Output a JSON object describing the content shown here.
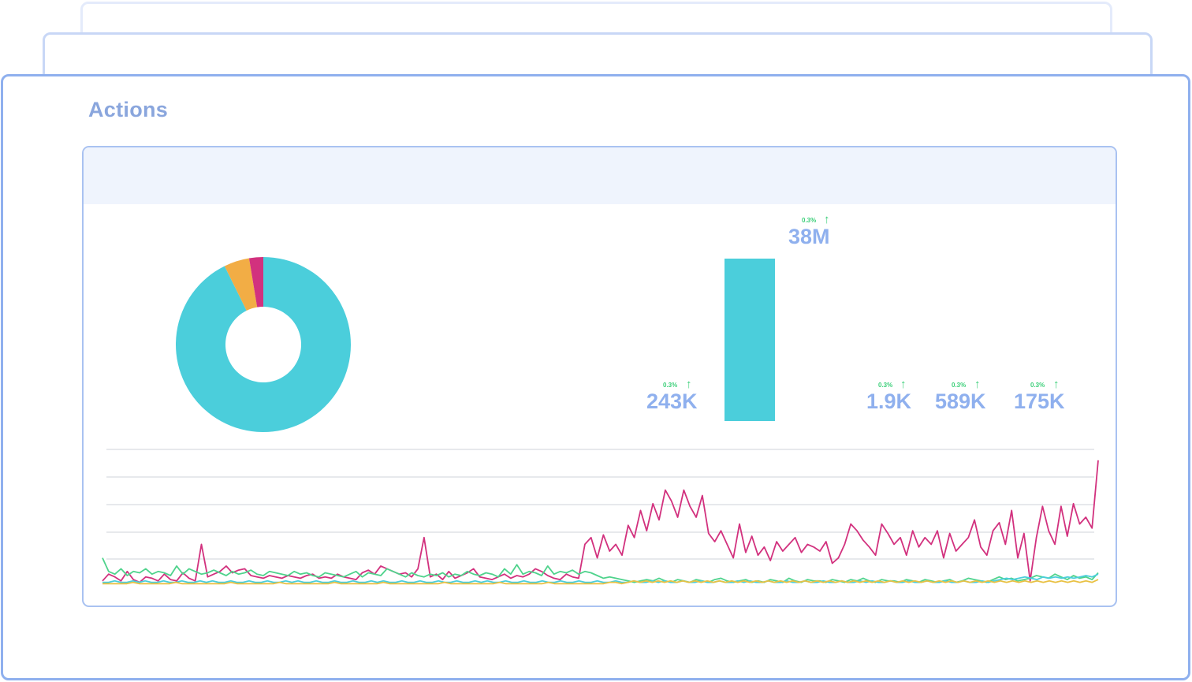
{
  "section": {
    "title": "Actions"
  },
  "metrics": [
    {
      "value": "243K",
      "delta": "0.3%",
      "trend": "up"
    },
    {
      "value": "38M",
      "delta": "0.3%",
      "trend": "up"
    },
    {
      "value": "1.9K",
      "delta": "0.3%",
      "trend": "up"
    },
    {
      "value": "589K",
      "delta": "0.3%",
      "trend": "up"
    },
    {
      "value": "175K",
      "delta": "0.3%",
      "trend": "up"
    }
  ],
  "icons": {
    "trend_up": "arrow-up-icon"
  },
  "colors": {
    "teal": "#4bcedb",
    "orange": "#f2ad45",
    "magenta": "#d2317e",
    "green": "#4fd38c",
    "yellow": "#e9c144",
    "accent": "#8fb0ee",
    "positive": "#3ccf79"
  },
  "chart_data": [
    {
      "type": "pie",
      "values": [
        92.7,
        4.7,
        2.6
      ],
      "colors": [
        "#4bcedb",
        "#f2ad45",
        "#d2317e"
      ]
    },
    {
      "type": "bar",
      "values": [
        38
      ],
      "colors": [
        "#4bcedb"
      ]
    },
    {
      "type": "line",
      "grid": true,
      "series": [
        {
          "color": "#d2317e",
          "values": [
            3,
            8,
            6,
            3,
            10,
            4,
            2,
            6,
            5,
            3,
            8,
            4,
            3,
            9,
            5,
            3,
            30,
            6,
            8,
            10,
            14,
            9,
            11,
            12,
            7,
            6,
            5,
            7,
            6,
            5,
            7,
            6,
            5,
            7,
            8,
            5,
            6,
            5,
            8,
            6,
            5,
            4,
            9,
            11,
            8,
            14,
            12,
            10,
            8,
            9,
            6,
            12,
            35,
            6,
            8,
            4,
            10,
            5,
            7,
            9,
            12,
            6,
            5,
            4,
            6,
            8,
            5,
            7,
            6,
            8,
            12,
            10,
            7,
            5,
            4,
            8,
            6,
            5,
            30,
            35,
            20,
            37,
            25,
            30,
            22,
            44,
            35,
            55,
            40,
            60,
            48,
            70,
            62,
            50,
            70,
            58,
            50,
            66,
            38,
            32,
            40,
            30,
            20,
            45,
            24,
            36,
            22,
            28,
            18,
            32,
            25,
            30,
            35,
            24,
            30,
            28,
            25,
            32,
            16,
            20,
            30,
            45,
            40,
            33,
            28,
            22,
            45,
            38,
            30,
            35,
            22,
            40,
            28,
            35,
            30,
            40,
            20,
            38,
            25,
            30,
            35,
            48,
            28,
            22,
            40,
            46,
            30,
            55,
            20,
            38,
            3,
            35,
            58,
            40,
            30,
            58,
            36,
            60,
            45,
            50,
            42,
            92
          ]
        },
        {
          "color": "#4fd38c",
          "values": [
            20,
            10,
            8,
            12,
            7,
            10,
            9,
            12,
            8,
            10,
            9,
            7,
            14,
            8,
            12,
            10,
            8,
            9,
            11,
            9,
            7,
            10,
            8,
            9,
            11,
            8,
            7,
            10,
            9,
            8,
            7,
            10,
            8,
            9,
            7,
            6,
            9,
            8,
            7,
            6,
            8,
            10,
            6,
            9,
            8,
            7,
            12,
            10,
            8,
            6,
            9,
            7,
            6,
            8,
            7,
            9,
            6,
            8,
            7,
            10,
            8,
            7,
            9,
            8,
            6,
            12,
            8,
            15,
            8,
            10,
            9,
            7,
            14,
            8,
            10,
            9,
            11,
            8,
            10,
            9,
            7,
            5,
            6,
            5,
            4,
            3,
            2,
            3,
            4,
            3,
            5,
            3,
            2,
            4,
            3,
            2,
            4,
            3,
            2,
            4,
            5,
            3,
            2,
            3,
            4,
            2,
            3,
            2,
            4,
            3,
            2,
            5,
            3,
            2,
            4,
            3,
            3,
            2,
            4,
            3,
            2,
            4,
            3,
            5,
            3,
            2,
            4,
            3,
            3,
            2,
            4,
            3,
            2,
            4,
            3,
            2,
            3,
            4,
            2,
            3,
            5,
            4,
            3,
            2,
            4,
            6,
            4,
            5,
            3,
            4,
            5,
            7,
            6,
            5,
            8,
            6,
            4,
            7,
            5,
            6,
            4,
            9
          ]
        },
        {
          "color": "#4bcedb",
          "values": [
            2,
            2,
            3,
            2,
            2,
            3,
            2,
            3,
            2,
            2,
            3,
            2,
            2,
            3,
            2,
            2,
            3,
            2,
            3,
            2,
            2,
            3,
            2,
            2,
            3,
            2,
            2,
            3,
            2,
            2,
            3,
            2,
            3,
            2,
            2,
            3,
            2,
            2,
            3,
            2,
            2,
            3,
            2,
            2,
            3,
            2,
            3,
            2,
            2,
            3,
            2,
            2,
            3,
            2,
            2,
            3,
            2,
            2,
            3,
            2,
            2,
            3,
            2,
            3,
            2,
            2,
            3,
            2,
            2,
            3,
            2,
            2,
            3,
            2,
            2,
            3,
            2,
            2,
            3,
            2,
            2,
            3,
            2,
            2,
            3,
            2,
            2,
            3,
            2,
            2,
            3,
            2,
            3,
            2,
            2,
            3,
            2,
            2,
            3,
            2,
            2,
            3,
            2,
            2,
            3,
            2,
            3,
            2,
            2,
            3,
            2,
            2,
            3,
            2,
            2,
            3,
            2,
            2,
            3,
            2,
            2,
            3,
            2,
            2,
            3,
            2,
            3,
            2,
            2,
            3,
            2,
            2,
            3,
            2,
            2,
            3,
            2,
            2,
            3,
            2,
            2,
            3,
            2,
            2,
            3,
            2,
            3,
            4,
            5,
            4,
            5,
            6,
            5,
            4,
            6,
            5,
            6,
            5,
            6,
            5,
            6,
            7,
            6,
            8
          ]
        },
        {
          "color": "#e9c144",
          "values": [
            1,
            1,
            1,
            1,
            1,
            2,
            1,
            1,
            1,
            1,
            1,
            1,
            2,
            1,
            1,
            1,
            1,
            1,
            1,
            1,
            1,
            2,
            1,
            1,
            1,
            1,
            1,
            1,
            1,
            2,
            1,
            1,
            1,
            1,
            1,
            1,
            1,
            1,
            2,
            1,
            1,
            1,
            1,
            1,
            1,
            1,
            2,
            1,
            1,
            1,
            1,
            1,
            1,
            1,
            1,
            1,
            2,
            1,
            1,
            1,
            1,
            1,
            1,
            1,
            1,
            2,
            1,
            1,
            1,
            1,
            1,
            1,
            1,
            2,
            1,
            1,
            1,
            1,
            1,
            1,
            1,
            1,
            1,
            2,
            2,
            1,
            2,
            3,
            2,
            3,
            2,
            3,
            2,
            3,
            2,
            3,
            2,
            3,
            2,
            3,
            2,
            3,
            2,
            3,
            2,
            3,
            2,
            3,
            2,
            3,
            2,
            3,
            2,
            3,
            2,
            3,
            2,
            3,
            2,
            3,
            2,
            3,
            2,
            3,
            2,
            3,
            2,
            3,
            2,
            3,
            2,
            3,
            2,
            3,
            2,
            3,
            2,
            3,
            2,
            3,
            2,
            3,
            2,
            3,
            2,
            3,
            2,
            3,
            2,
            3,
            2,
            3,
            2,
            3,
            2,
            3,
            2,
            3,
            2,
            3,
            2,
            3,
            2,
            4
          ]
        }
      ]
    }
  ]
}
